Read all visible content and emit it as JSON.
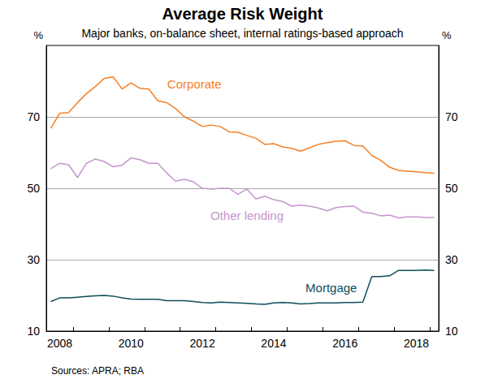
{
  "chart_data": {
    "type": "line",
    "title": "Average Risk Weight",
    "subtitle": "Major banks, on-balance sheet, internal ratings-based approach",
    "ylabel": "%",
    "source": "Sources: APRA; RBA",
    "categories": [
      null,
      "2008",
      null,
      null,
      null,
      null,
      null,
      null,
      null,
      "2010",
      null,
      null,
      null,
      null,
      null,
      null,
      null,
      "2012",
      null,
      null,
      null,
      null,
      null,
      null,
      null,
      "2014",
      null,
      null,
      null,
      null,
      null,
      null,
      null,
      "2016",
      null,
      null,
      null,
      null,
      null,
      null,
      null,
      "2018",
      null,
      null
    ],
    "series": [
      {
        "name": "Corporate",
        "color": "#f58025",
        "values": [
          66.8,
          71,
          71.2,
          74,
          76.5,
          78.5,
          80.8,
          81.2,
          77.8,
          79.5,
          78,
          77.8,
          74.5,
          74,
          72.3,
          70,
          68.8,
          67.3,
          67.7,
          67.3,
          65.8,
          65.7,
          64.8,
          64,
          62.3,
          62.5,
          61.6,
          61.2,
          60.4,
          61.3,
          62.3,
          62.8,
          63.2,
          63.3,
          62,
          61.8,
          59.2,
          57.8,
          55.9,
          55,
          54.8,
          54.6,
          54.4,
          54.2
        ]
      },
      {
        "name": "Other lending",
        "color": "#c496cc",
        "values": [
          55.5,
          57,
          56.6,
          53,
          57,
          58.2,
          57.5,
          56,
          56.5,
          58.5,
          58,
          57,
          57,
          54.3,
          52,
          52.5,
          51.8,
          50,
          49.8,
          50,
          50,
          48.3,
          49.8,
          47,
          47.8,
          46.8,
          46.3,
          45,
          45.3,
          45,
          44.5,
          43.7,
          44.6,
          44.9,
          45,
          43.3,
          43,
          42.3,
          42.5,
          41.7,
          42,
          42,
          41.8,
          41.8
        ]
      },
      {
        "name": "Mortgage",
        "color": "#0e4d5c",
        "values": [
          18.3,
          19.3,
          19.3,
          19.5,
          19.7,
          19.9,
          20,
          19.8,
          19.3,
          19,
          18.9,
          18.9,
          18.9,
          18.5,
          18.5,
          18.5,
          18.3,
          18,
          17.9,
          18.1,
          18,
          17.9,
          17.8,
          17.6,
          17.5,
          17.9,
          18,
          17.9,
          17.6,
          17.7,
          17.9,
          17.9,
          17.9,
          18,
          18,
          18.1,
          25.3,
          25.3,
          25.5,
          27,
          27,
          27,
          27.1,
          27
        ]
      }
    ],
    "ylim": [
      10,
      90
    ],
    "yticks": [
      10,
      30,
      50,
      70
    ],
    "grid": true
  }
}
